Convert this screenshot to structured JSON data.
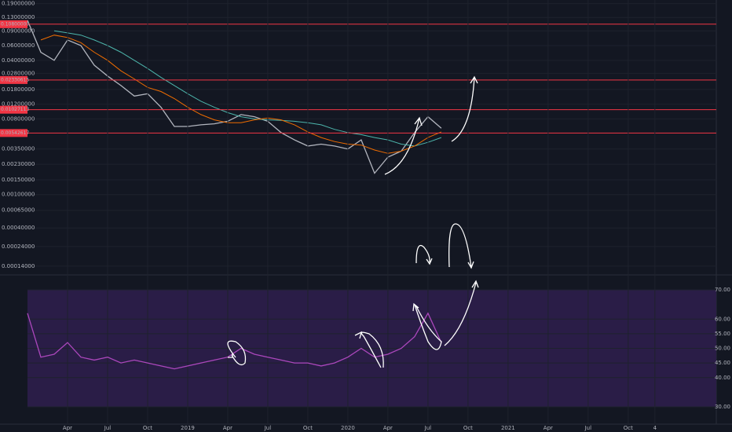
{
  "chart_data": [
    {
      "type": "line",
      "log_scale": true,
      "grid": true,
      "ylim": [
        0.00011,
        0.21
      ],
      "xlim": [
        0,
        51.6
      ],
      "yticks": [
        {
          "value": 0.19,
          "label": "0.19000000"
        },
        {
          "value": 0.13,
          "label": "0.13000000"
        },
        {
          "value": 0.09,
          "label": "0.09000000"
        },
        {
          "value": 0.06,
          "label": "0.06000000"
        },
        {
          "value": 0.04,
          "label": "0.04000000"
        },
        {
          "value": 0.028,
          "label": "0.02800000"
        },
        {
          "value": 0.018,
          "label": "0.01800000"
        },
        {
          "value": 0.012,
          "label": "0.01200000"
        },
        {
          "value": 0.008,
          "label": "0.00800000"
        },
        {
          "value": 0.0035,
          "label": "0.00350000"
        },
        {
          "value": 0.0023,
          "label": "0.00230000"
        },
        {
          "value": 0.0015,
          "label": "0.00150000"
        },
        {
          "value": 0.001,
          "label": "0.00100000"
        },
        {
          "value": 0.00065,
          "label": "0.00065000"
        },
        {
          "value": 0.0004,
          "label": "0.00040000"
        },
        {
          "value": 0.00024,
          "label": "0.00024000"
        },
        {
          "value": 0.00014,
          "label": "0.00014000"
        }
      ],
      "levels": [
        {
          "value": 0.108,
          "label": "0.10800000"
        },
        {
          "value": 0.0233,
          "label": "0.02330615"
        },
        {
          "value": 0.0103,
          "label": "0.01027113"
        },
        {
          "value": 0.00543,
          "label": "0.00542617"
        }
      ],
      "level_color": "#f23645",
      "x": [
        0,
        1,
        2,
        3,
        4,
        5,
        6,
        7,
        8,
        9,
        10,
        11,
        12,
        13,
        14,
        15,
        16,
        17,
        18,
        19,
        20,
        21,
        22,
        23,
        24,
        25,
        26,
        27,
        28,
        29,
        30,
        31
      ],
      "series": [
        {
          "color": "#b2b5be",
          "values": [
            0.12,
            0.05,
            0.04,
            0.07,
            0.06,
            0.035,
            0.026,
            0.02,
            0.015,
            0.016,
            0.011,
            0.0065,
            0.0065,
            0.0068,
            0.007,
            0.0075,
            0.009,
            0.0085,
            0.0075,
            0.0055,
            0.0045,
            0.0038,
            0.004,
            0.0038,
            0.0035,
            0.0045,
            0.0018,
            0.0028,
            0.0033,
            0.0055,
            0.0085,
            0.0062
          ]
        },
        {
          "color": "#4db6ac",
          "values": [
            null,
            null,
            0.09,
            0.085,
            0.08,
            0.07,
            0.06,
            0.05,
            0.04,
            0.032,
            0.025,
            0.02,
            0.016,
            0.013,
            0.011,
            0.0095,
            0.0085,
            0.008,
            0.0078,
            0.0077,
            0.0075,
            0.0072,
            0.0068,
            0.006,
            0.0055,
            0.0052,
            0.0048,
            0.0045,
            0.004,
            0.0038,
            0.0042,
            0.0048
          ]
        },
        {
          "color": "#ef6c00",
          "values": [
            null,
            0.07,
            0.08,
            0.075,
            0.065,
            0.05,
            0.04,
            0.03,
            0.024,
            0.019,
            0.017,
            0.014,
            0.011,
            0.009,
            0.0078,
            0.0072,
            0.0072,
            0.0078,
            0.0082,
            0.0078,
            0.0068,
            0.0056,
            0.0048,
            0.0043,
            0.004,
            0.0039,
            0.0034,
            0.0031,
            0.0033,
            0.0038,
            0.0048,
            0.0056
          ]
        }
      ]
    },
    {
      "type": "line",
      "grid": true,
      "ylim": [
        24.1,
        75.1
      ],
      "xlim": [
        0,
        51.6
      ],
      "band": [
        30,
        70
      ],
      "band_color": "#2a1d47",
      "yticks": [
        {
          "value": 70,
          "label": "70.00"
        },
        {
          "value": 60,
          "label": "60.00"
        },
        {
          "value": 55,
          "label": "55.00"
        },
        {
          "value": 50,
          "label": "50.00"
        },
        {
          "value": 45,
          "label": "45.00"
        },
        {
          "value": 40,
          "label": "40.00"
        },
        {
          "value": 30,
          "label": "30.00"
        }
      ],
      "xticks": [
        {
          "value": 3,
          "label": "Apr"
        },
        {
          "value": 6,
          "label": "Jul"
        },
        {
          "value": 9,
          "label": "Oct"
        },
        {
          "value": 12,
          "label": "2019"
        },
        {
          "value": 15,
          "label": "Apr"
        },
        {
          "value": 18,
          "label": "Jul"
        },
        {
          "value": 21,
          "label": "Oct"
        },
        {
          "value": 24,
          "label": "2020"
        },
        {
          "value": 27,
          "label": "Apr"
        },
        {
          "value": 30,
          "label": "Jul"
        },
        {
          "value": 33,
          "label": "Oct"
        },
        {
          "value": 36,
          "label": "2021"
        },
        {
          "value": 39,
          "label": "Apr"
        },
        {
          "value": 42,
          "label": "Jul"
        },
        {
          "value": 45,
          "label": "Oct"
        },
        {
          "value": 47,
          "label": "4"
        }
      ],
      "x": [
        0,
        1,
        2,
        3,
        4,
        5,
        6,
        7,
        8,
        9,
        10,
        11,
        12,
        13,
        14,
        15,
        16,
        17,
        18,
        19,
        20,
        21,
        22,
        23,
        24,
        25,
        26,
        27,
        28,
        29,
        30,
        31
      ],
      "series": [
        {
          "color": "#ab47bc",
          "values": [
            62,
            47,
            48,
            52,
            47,
            46,
            47,
            45,
            46,
            45,
            44,
            43,
            44,
            45,
            46,
            47,
            50,
            48,
            47,
            46,
            45,
            45,
            44,
            45,
            47,
            50,
            47,
            48,
            50,
            54,
            62,
            52
          ]
        }
      ]
    }
  ]
}
